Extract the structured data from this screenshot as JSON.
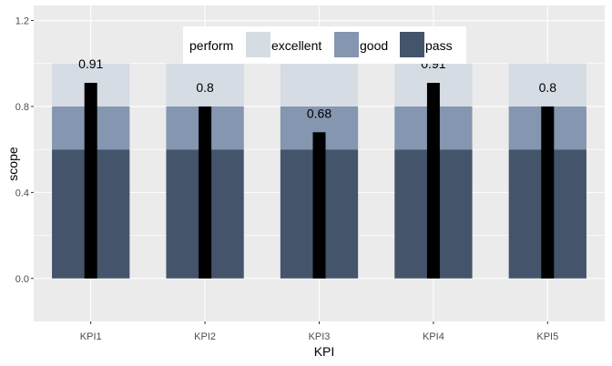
{
  "chart_data": {
    "type": "bar",
    "categories": [
      "KPI1",
      "KPI2",
      "KPI3",
      "KPI4",
      "KPI5"
    ],
    "xlabel": "KPI",
    "ylabel": "scope",
    "ylim": [
      -0.2,
      1.27
    ],
    "yticks": [
      0.0,
      0.4,
      0.8,
      1.2
    ],
    "ytick_labels": [
      "0.0",
      "0.4",
      "0.8",
      "1.2"
    ],
    "grid": true,
    "bands": [
      {
        "name": "pass",
        "from": 0.0,
        "to": 0.6,
        "color": "#44546a"
      },
      {
        "name": "good",
        "from": 0.6,
        "to": 0.8,
        "color": "#8496b0"
      },
      {
        "name": "excellent",
        "from": 0.8,
        "to": 1.0,
        "color": "#d6dce4"
      }
    ],
    "series": [
      {
        "values": [
          0.91,
          0.8,
          0.68,
          0.91,
          0.8
        ],
        "color": "#000000"
      }
    ],
    "data_labels": [
      "0.91",
      "0.8",
      "0.68",
      "0.91",
      "0.8"
    ],
    "legend": {
      "title": "perform",
      "position": "top",
      "entries": [
        {
          "label": "excellent",
          "color": "#d6dce4"
        },
        {
          "label": "good",
          "color": "#8496b0"
        },
        {
          "label": "pass",
          "color": "#44546a"
        }
      ]
    },
    "colors": {
      "panel": "#ebebeb",
      "grid": "#ffffff",
      "value_bar": "#000000"
    }
  }
}
